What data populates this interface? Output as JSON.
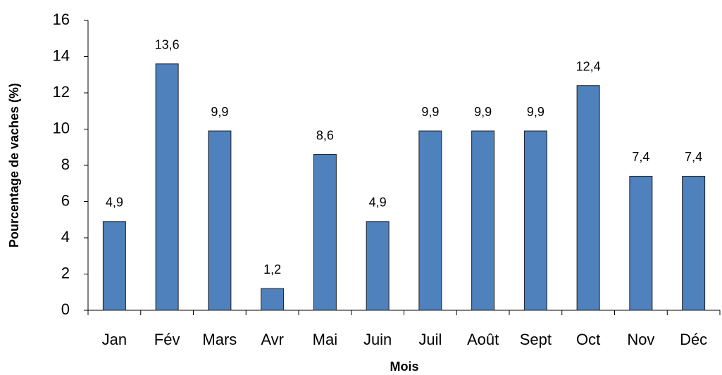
{
  "chart_data": {
    "type": "bar",
    "x_label": "Mois",
    "y_label": "Pourcentage de vaches (%)",
    "categories": [
      "Jan",
      "Fév",
      "Mars",
      "Avr",
      "Mai",
      "Juin",
      "Juil",
      "Août",
      "Sept",
      "Oct",
      "Nov",
      "Déc"
    ],
    "values": [
      4.9,
      13.6,
      9.9,
      1.2,
      8.6,
      4.9,
      9.9,
      9.9,
      9.9,
      12.4,
      7.4,
      7.4
    ],
    "value_labels": [
      "4,9",
      "13,6",
      "9,9",
      "1,2",
      "8,6",
      "4,9",
      "9,9",
      "9,9",
      "9,9",
      "12,4",
      "7,4",
      "7,4"
    ],
    "color": "#4f81bd",
    "ylim": [
      0,
      16
    ],
    "yticks": [
      0,
      2,
      4,
      6,
      8,
      10,
      12,
      14,
      16
    ],
    "grid": false
  }
}
